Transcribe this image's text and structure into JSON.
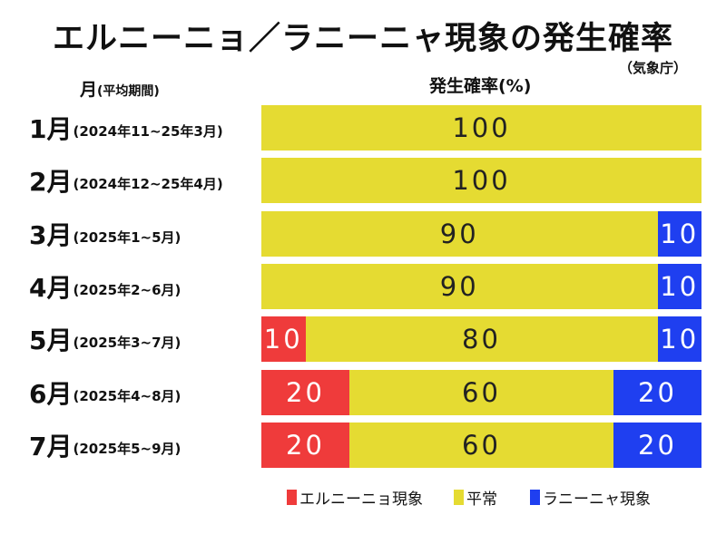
{
  "title": "エルニーニョ／ラニーニャ現象の発生確率",
  "source": "（気象庁）",
  "headers": {
    "period_main": "月",
    "period_sub": "(平均期間)",
    "probability": "発生確率(%)"
  },
  "colors": {
    "elnino": "#ef3b3b",
    "normal": "#e5db32",
    "lanina": "#1f3ff0"
  },
  "legend": [
    {
      "key": "elnino",
      "label": "エルニーニョ現象"
    },
    {
      "key": "normal",
      "label": "平常"
    },
    {
      "key": "lanina",
      "label": "ラニーニャ現象"
    }
  ],
  "chart_data": {
    "type": "bar",
    "orientation": "horizontal",
    "stacked": true,
    "title": "エルニーニョ／ラニーニャ現象の発生確率",
    "xlabel": "発生確率(%)",
    "ylabel": "月(平均期間)",
    "xlim": [
      0,
      100
    ],
    "categories": [
      {
        "month": "1月",
        "period": "(2024年11~25年3月)"
      },
      {
        "month": "2月",
        "period": "(2024年12~25年4月)"
      },
      {
        "month": "3月",
        "period": "(2025年1~5月)"
      },
      {
        "month": "4月",
        "period": "(2025年2~6月)"
      },
      {
        "month": "5月",
        "period": "(2025年3~7月)"
      },
      {
        "month": "6月",
        "period": "(2025年4~8月)"
      },
      {
        "month": "7月",
        "period": "(2025年5~9月)"
      }
    ],
    "series": [
      {
        "key": "elnino",
        "name": "エルニーニョ現象",
        "values": [
          0,
          0,
          0,
          0,
          10,
          20,
          20
        ]
      },
      {
        "key": "normal",
        "name": "平常",
        "values": [
          100,
          100,
          90,
          90,
          80,
          60,
          60
        ]
      },
      {
        "key": "lanina",
        "name": "ラニーニャ現象",
        "values": [
          0,
          0,
          10,
          10,
          10,
          20,
          20
        ]
      }
    ],
    "legend_position": "bottom"
  }
}
